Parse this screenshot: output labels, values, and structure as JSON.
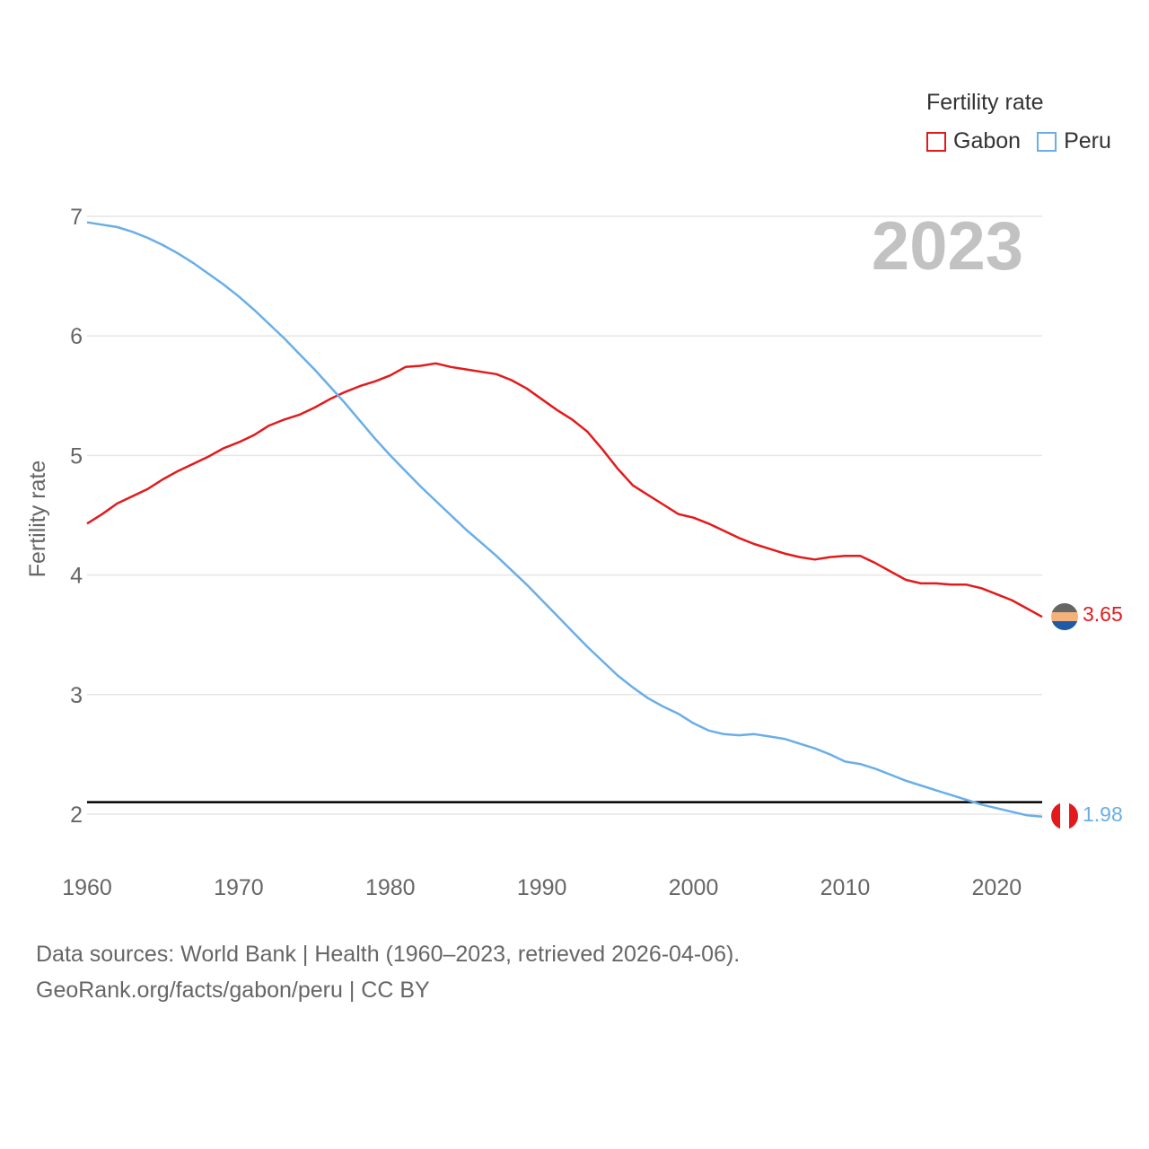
{
  "chart_data": {
    "type": "line",
    "title": "2023",
    "ylabel": "Fertility rate",
    "xlabel": "",
    "xlim": [
      1960,
      2023
    ],
    "ylim": [
      1.7,
      7.0
    ],
    "x_ticks": [
      1960,
      1970,
      1980,
      1990,
      2000,
      2010,
      2020
    ],
    "y_ticks": [
      2,
      3,
      4,
      5,
      6,
      7
    ],
    "reference_line": 2.1,
    "legend_title": "Fertility rate",
    "x": [
      1960,
      1961,
      1962,
      1963,
      1964,
      1965,
      1966,
      1967,
      1968,
      1969,
      1970,
      1971,
      1972,
      1973,
      1974,
      1975,
      1976,
      1977,
      1978,
      1979,
      1980,
      1981,
      1982,
      1983,
      1984,
      1985,
      1986,
      1987,
      1988,
      1989,
      1990,
      1991,
      1992,
      1993,
      1994,
      1995,
      1996,
      1997,
      1998,
      1999,
      2000,
      2001,
      2002,
      2003,
      2004,
      2005,
      2006,
      2007,
      2008,
      2009,
      2010,
      2011,
      2012,
      2013,
      2014,
      2015,
      2016,
      2017,
      2018,
      2019,
      2020,
      2021,
      2022,
      2023
    ],
    "series": [
      {
        "name": "Gabon",
        "color": "#e31a1c",
        "end_label": "3.65",
        "values": [
          4.43,
          4.51,
          4.6,
          4.66,
          4.72,
          4.8,
          4.87,
          4.93,
          4.99,
          5.06,
          5.11,
          5.17,
          5.25,
          5.3,
          5.34,
          5.4,
          5.47,
          5.53,
          5.58,
          5.62,
          5.67,
          5.74,
          5.75,
          5.77,
          5.74,
          5.72,
          5.7,
          5.68,
          5.63,
          5.56,
          5.47,
          5.38,
          5.3,
          5.2,
          5.05,
          4.89,
          4.75,
          4.67,
          4.59,
          4.51,
          4.48,
          4.43,
          4.37,
          4.31,
          4.26,
          4.22,
          4.18,
          4.15,
          4.13,
          4.15,
          4.16,
          4.16,
          4.1,
          4.03,
          3.96,
          3.93,
          3.93,
          3.92,
          3.92,
          3.89,
          3.84,
          3.79,
          3.72,
          3.65
        ]
      },
      {
        "name": "Peru",
        "color": "#6aaee8",
        "end_label": "1.98",
        "values": [
          6.95,
          6.93,
          6.91,
          6.87,
          6.82,
          6.76,
          6.69,
          6.61,
          6.52,
          6.43,
          6.33,
          6.22,
          6.1,
          5.98,
          5.85,
          5.72,
          5.58,
          5.44,
          5.29,
          5.14,
          5.0,
          4.87,
          4.74,
          4.62,
          4.5,
          4.38,
          4.27,
          4.16,
          4.04,
          3.92,
          3.79,
          3.66,
          3.53,
          3.4,
          3.28,
          3.16,
          3.06,
          2.97,
          2.9,
          2.84,
          2.76,
          2.7,
          2.67,
          2.66,
          2.67,
          2.65,
          2.63,
          2.59,
          2.55,
          2.5,
          2.44,
          2.42,
          2.38,
          2.33,
          2.28,
          2.24,
          2.2,
          2.16,
          2.12,
          2.08,
          2.05,
          2.02,
          1.99,
          1.98
        ]
      }
    ]
  },
  "footer": {
    "sources": "Data sources: World Bank | Health (1960–2023, retrieved 2026-04-06).",
    "credit": "GeoRank.org/facts/gabon/peru | CC BY"
  }
}
